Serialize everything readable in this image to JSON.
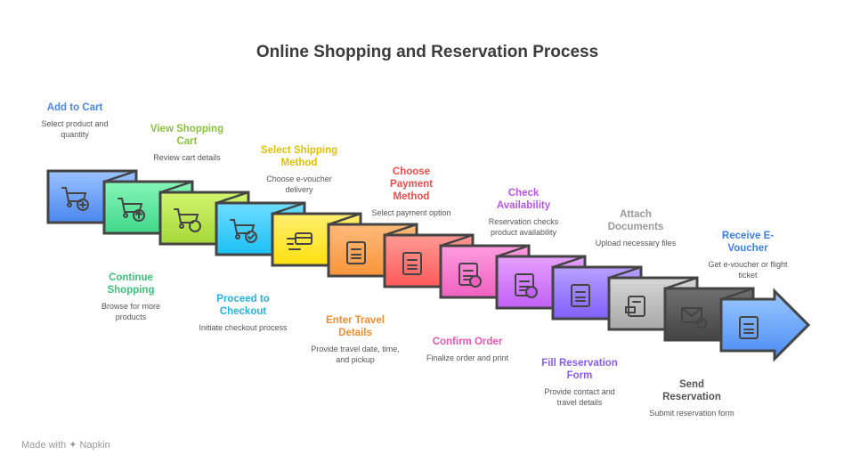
{
  "title": "Online Shopping and Reservation Process",
  "steps": [
    {
      "title": "Add to Cart",
      "desc": "Select product and quantity",
      "color": "#4a86e8",
      "fill_top": "#9cc2ff",
      "fill_bottom": "#4a86f0",
      "icon": "cart-plus-icon",
      "label_pos": "top"
    },
    {
      "title": "Continue Shopping",
      "desc": "Browse for more products",
      "color": "#3cc47a",
      "fill_top": "#86f5b8",
      "fill_bottom": "#3fd88a",
      "icon": "cart-upload-icon",
      "label_pos": "bottom"
    },
    {
      "title": "View Shopping Cart",
      "desc": "Review cart details",
      "color": "#8ac33a",
      "fill_top": "#d2f56e",
      "fill_bottom": "#a6d83a",
      "icon": "cart-star-icon",
      "label_pos": "top"
    },
    {
      "title": "Proceed to Checkout",
      "desc": "Initiate checkout process",
      "color": "#22b4dd",
      "fill_top": "#6fdcff",
      "fill_bottom": "#1cc0f5",
      "icon": "cart-check-icon",
      "label_pos": "bottom"
    },
    {
      "title": "Select Shipping Method",
      "desc": "Choose e-voucher delivery",
      "color": "#e0c000",
      "fill_top": "#ffee70",
      "fill_bottom": "#ffe010",
      "icon": "card-hand-icon",
      "label_pos": "top"
    },
    {
      "title": "Enter Travel Details",
      "desc": "Provide travel date, time, and pickup",
      "color": "#f08c30",
      "fill_top": "#ffba7a",
      "fill_bottom": "#f8953a",
      "icon": "travel-form-icon",
      "label_pos": "bottom"
    },
    {
      "title": "Choose Payment Method",
      "desc": "Select payment option",
      "color": "#ee4c4c",
      "fill_top": "#ff9a94",
      "fill_bottom": "#ff5a5a",
      "icon": "wallet-card-icon",
      "label_pos": "top"
    },
    {
      "title": "Confirm Order",
      "desc": "Finalize order and print",
      "color": "#e855b0",
      "fill_top": "#ff9ce0",
      "fill_bottom": "#f060c0",
      "icon": "box-check-icon",
      "label_pos": "bottom"
    },
    {
      "title": "Check Availability",
      "desc": "Reservation checks product availability",
      "color": "#b855e8",
      "fill_top": "#e6a0ff",
      "fill_bottom": "#c060f5",
      "icon": "grid-check-icon",
      "label_pos": "top"
    },
    {
      "title": "Fill Reservation Form",
      "desc": "Provide contact and travel details",
      "color": "#8a5cf0",
      "fill_top": "#b7a0ff",
      "fill_bottom": "#8060ff",
      "icon": "form-icon",
      "label_pos": "bottom"
    },
    {
      "title": "Attach Documents",
      "desc": "Upload necessary files",
      "color": "#999999",
      "fill_top": "#d6d6d6",
      "fill_bottom": "#a8a8a8",
      "icon": "document-icon",
      "label_pos": "top"
    },
    {
      "title": "Send Reservation",
      "desc": "Submit reservation form",
      "color": "#555555",
      "fill_top": "#707070",
      "fill_bottom": "#444444",
      "icon": "mail-send-icon",
      "label_pos": "bottom"
    },
    {
      "title": "Receive E-Voucher",
      "desc": "Get e-voucher or flight ticket",
      "color": "#3a7ee8",
      "fill_top": "#9cc8ff",
      "fill_bottom": "#4a8cf5",
      "icon": "ticket-hand-icon",
      "label_pos": "top"
    }
  ],
  "footer": {
    "text": "Made with",
    "brand": "Napkin"
  }
}
